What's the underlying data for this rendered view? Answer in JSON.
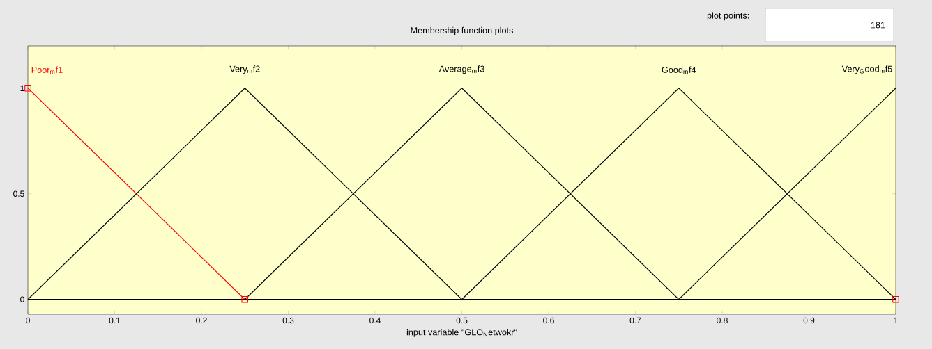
{
  "chart_data": {
    "type": "line",
    "title": "Membership function plots",
    "xlabel": "input variable \"GLO$_{N}$etwokr\"",
    "xlim": [
      0,
      1
    ],
    "ylim": [
      -0.07,
      1.2
    ],
    "xticks": [
      0,
      0.1,
      0.2,
      0.3,
      0.4,
      0.5,
      0.6,
      0.7,
      0.8,
      0.9,
      1
    ],
    "yticks": [
      0,
      0.5,
      1
    ],
    "grid": false,
    "annotations": [
      "plot points:",
      "181"
    ],
    "series": [
      {
        "name": "Poor$_{m}$f1",
        "color": "#ff0000",
        "marker": "square",
        "x": [
          0,
          0.25,
          1
        ],
        "values": [
          1,
          0,
          0
        ]
      },
      {
        "name": "Very$_{m}$f2",
        "color": "#000000",
        "x": [
          0,
          0.25,
          0.5,
          1
        ],
        "values": [
          0,
          1,
          0,
          0
        ]
      },
      {
        "name": "Average$_{m}$f3",
        "color": "#000000",
        "x": [
          0,
          0.25,
          0.5,
          0.75,
          1
        ],
        "values": [
          0,
          0,
          1,
          0,
          0
        ]
      },
      {
        "name": "Good$_{m}$f4",
        "color": "#000000",
        "x": [
          0,
          0.5,
          0.75,
          1
        ],
        "values": [
          0,
          0,
          1,
          0
        ]
      },
      {
        "name": "Very$_{G}$ood$_{m}$f5",
        "color": "#000000",
        "x": [
          0,
          0.75,
          1
        ],
        "values": [
          0,
          0,
          1
        ]
      }
    ]
  }
}
